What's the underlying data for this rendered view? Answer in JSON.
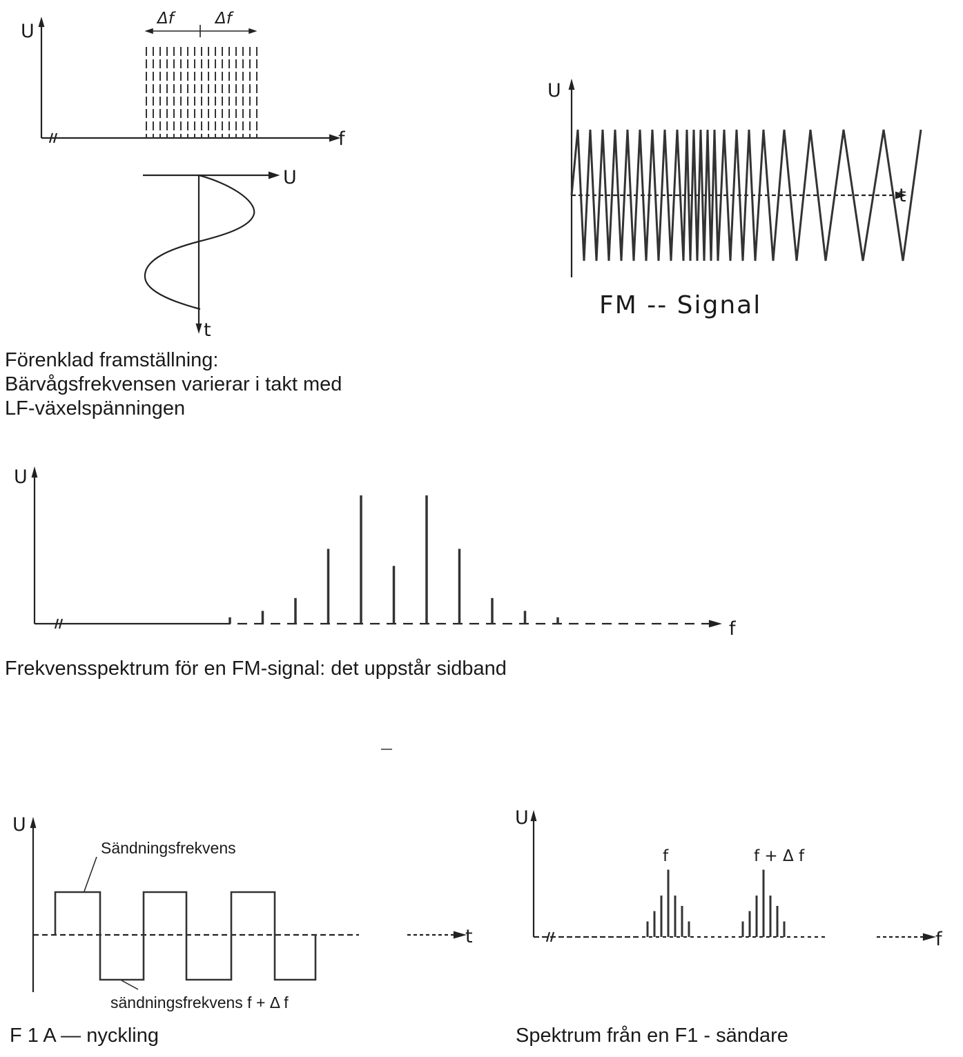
{
  "fig1": {
    "y_label": "U",
    "x_label": "f",
    "delta_left": "Δf",
    "delta_right": "Δf",
    "sine_label_u": "U",
    "sine_label_t": "t",
    "caption": [
      "Förenklad framställning:",
      "Bärvågsfrekvensen varierar i takt med",
      "LF-växelspänningen"
    ]
  },
  "fig2": {
    "y_label": "U",
    "x_label": "t",
    "title": "FM -- Signal"
  },
  "fig3": {
    "y_label": "U",
    "x_label": "f",
    "caption": "Frekvensspektrum för en FM-signal: det uppstår sidband",
    "lines": [
      3,
      6,
      12,
      35,
      60,
      27,
      60,
      35,
      12,
      6,
      3
    ]
  },
  "fig4": {
    "y_label": "U",
    "x_label": "t",
    "upper_label": "Sändningsfrekvens",
    "lower_label": "sändningsfrekvens f + Δ f",
    "caption": "F 1 A — nyckling"
  },
  "fig5": {
    "y_label": "U",
    "x_label": "f",
    "peak1_label": "f",
    "peak2_label": "f + Δ f",
    "caption": "Spektrum från en F1 - sändare",
    "group1": [
      15,
      25,
      40,
      65,
      40,
      30,
      15
    ],
    "group2": [
      15,
      25,
      40,
      65,
      40,
      30,
      15
    ]
  }
}
